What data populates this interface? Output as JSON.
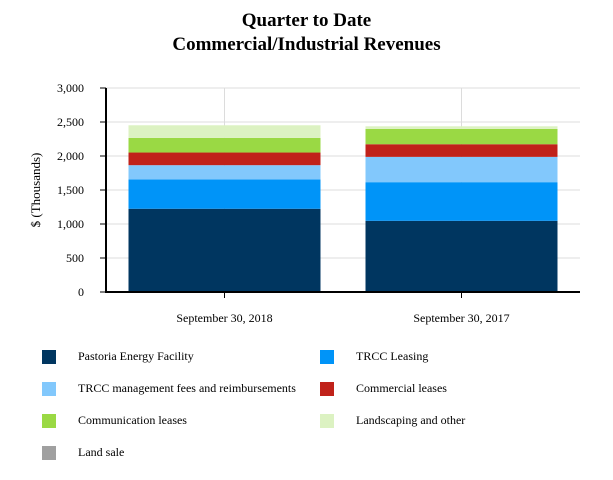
{
  "chart_data": {
    "type": "bar",
    "stacked": true,
    "title": "Quarter to Date",
    "subtitle": "Commercial/Industrial Revenues",
    "xlabel": "",
    "ylabel": "$ (Thousands)",
    "ylim": [
      0,
      3000
    ],
    "yticks": [
      "0",
      "500",
      "1,000",
      "1,500",
      "2,000",
      "2,500",
      "3,000"
    ],
    "grid": true,
    "legend_position": "bottom",
    "categories": [
      "September 30, 2018",
      "September 30, 2017"
    ],
    "series": [
      {
        "name": "Pastoria Energy Facility",
        "color": "#003660",
        "values": [
          1224,
          1047
        ]
      },
      {
        "name": "TRCC Leasing",
        "color": "#0094f8",
        "values": [
          430,
          568
        ]
      },
      {
        "name": "TRCC management fees and reimbursements",
        "color": "#82c8fc",
        "values": [
          211,
          372
        ]
      },
      {
        "name": "Commercial leases",
        "color": "#c0221a",
        "values": [
          186,
          186
        ]
      },
      {
        "name": "Communication leases",
        "color": "#9ad944",
        "values": [
          215,
          225
        ]
      },
      {
        "name": "Landscaping and other",
        "color": "#dcf2c2",
        "values": [
          186,
          39
        ]
      },
      {
        "name": "Land sale",
        "color": "#a0a0a0",
        "values": [
          0,
          0
        ]
      }
    ]
  }
}
